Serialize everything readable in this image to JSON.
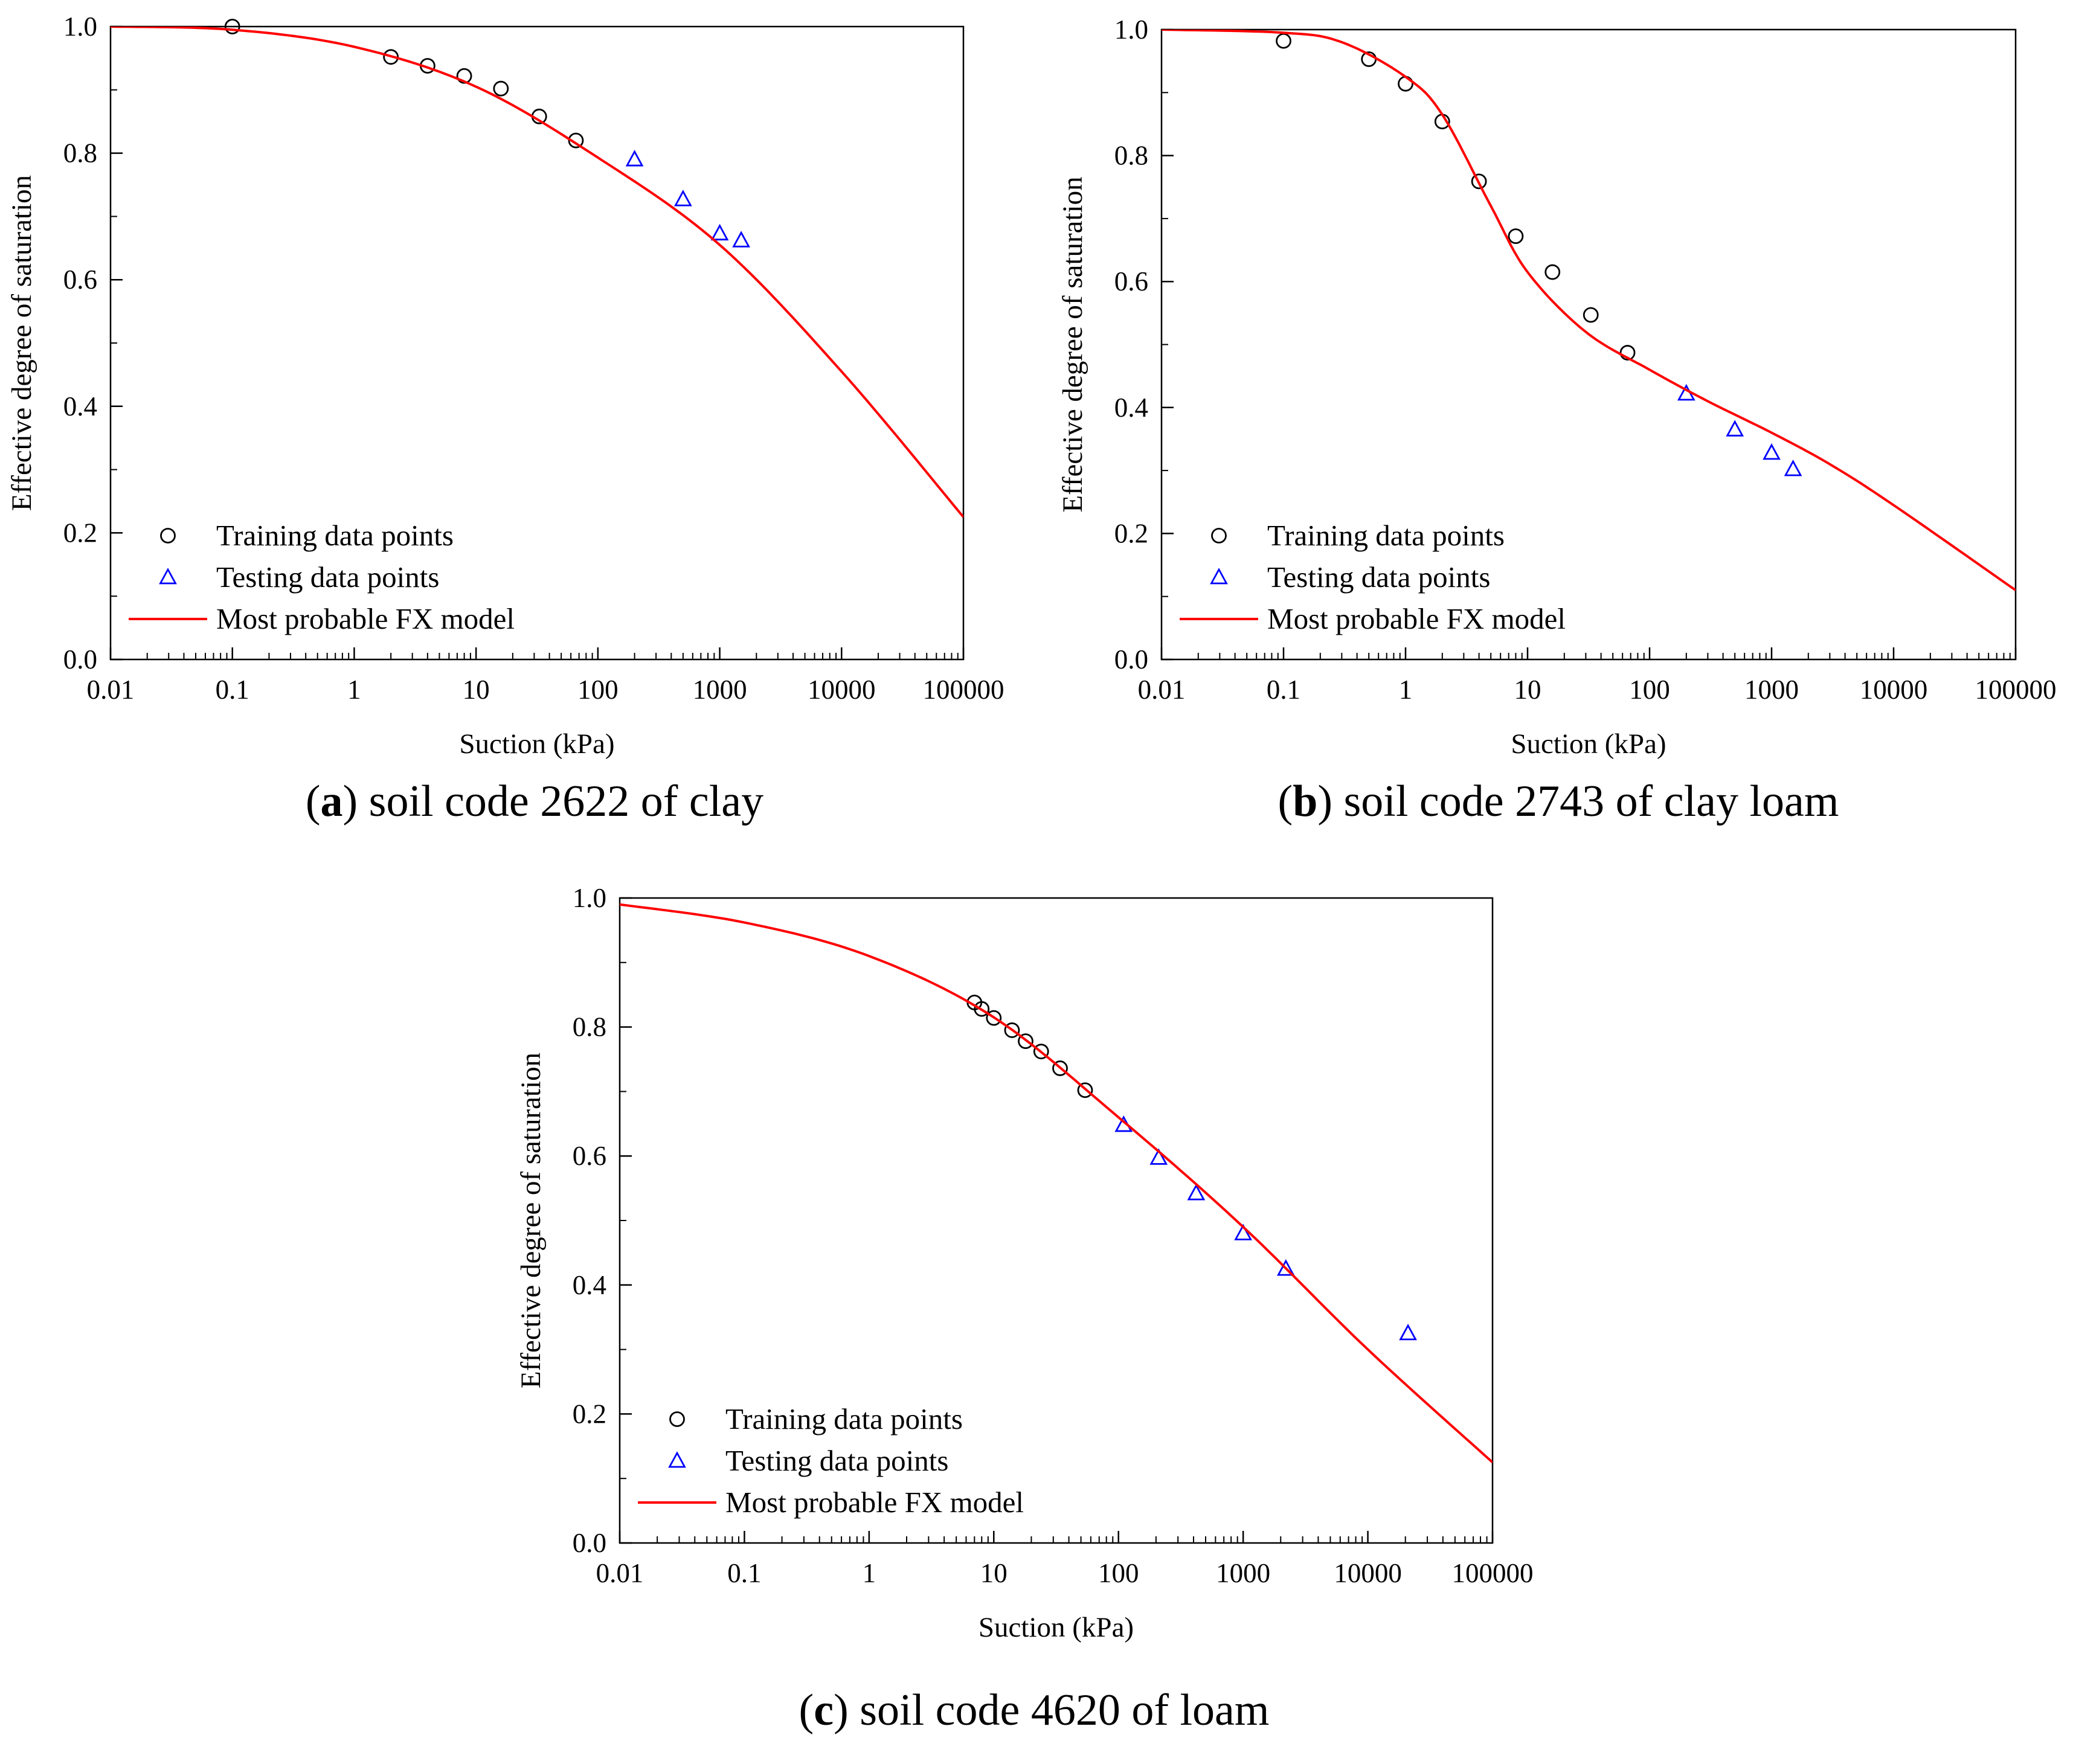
{
  "figure": {
    "panels": [
      {
        "letter": "a",
        "caption_text": " soil code 2622 of clay"
      },
      {
        "letter": "b",
        "caption_text": " soil code 2743 of clay loam"
      },
      {
        "letter": "c",
        "caption_text": " soil code 4620 of loam"
      }
    ]
  },
  "colors": {
    "training": "#000000",
    "testing": "#0000ff",
    "model": "#ff0000",
    "axis": "#000000"
  },
  "chart_data": [
    {
      "id": "a",
      "type": "scatter",
      "xscale": "log",
      "xlim": [
        0.01,
        100000
      ],
      "ylim": [
        0.0,
        1.0
      ],
      "xlabel": "Suction (kPa)",
      "ylabel": "Effective degree of saturation",
      "xticks": [
        "0.01",
        "0.1",
        "1",
        "10",
        "100",
        "1000",
        "10000",
        "100000"
      ],
      "yticks": [
        "0.0",
        "0.2",
        "0.4",
        "0.6",
        "0.8",
        "1.0"
      ],
      "legend": [
        "Training data points",
        "Testing data points",
        "Most probable FX model"
      ],
      "series": [
        {
          "name": "Training data points",
          "marker": "circle",
          "x": [
            0.1,
            2,
            4,
            8,
            16,
            33,
            66
          ],
          "y": [
            1.0,
            0.952,
            0.938,
            0.922,
            0.902,
            0.858,
            0.82
          ]
        },
        {
          "name": "Testing data points",
          "marker": "triangle",
          "x": [
            200,
            500,
            1000,
            1500
          ],
          "y": [
            0.79,
            0.727,
            0.673,
            0.662
          ]
        },
        {
          "name": "Most probable FX model",
          "marker": "line",
          "x": [
            0.01,
            0.1,
            1,
            10,
            100,
            1000,
            10000,
            100000
          ],
          "y": [
            1.0,
            0.995,
            0.968,
            0.905,
            0.793,
            0.655,
            0.455,
            0.225
          ]
        }
      ]
    },
    {
      "id": "b",
      "type": "scatter",
      "xscale": "log",
      "xlim": [
        0.01,
        100000
      ],
      "ylim": [
        0.0,
        1.0
      ],
      "xlabel": "Suction (kPa)",
      "ylabel": "Effective degree of saturation",
      "xticks": [
        "0.01",
        "0.1",
        "1",
        "10",
        "100",
        "1000",
        "10000",
        "100000"
      ],
      "yticks": [
        "0.0",
        "0.2",
        "0.4",
        "0.6",
        "0.8",
        "1.0"
      ],
      "legend": [
        "Training data points",
        "Testing data points",
        "Most probable FX model"
      ],
      "series": [
        {
          "name": "Training data points",
          "marker": "circle",
          "x": [
            0.1,
            0.5,
            1,
            2,
            4,
            8,
            16,
            33,
            66
          ],
          "y": [
            0.982,
            0.953,
            0.914,
            0.854,
            0.759,
            0.672,
            0.615,
            0.547,
            0.487
          ]
        },
        {
          "name": "Testing data points",
          "marker": "triangle",
          "x": [
            200,
            500,
            1000,
            1500
          ],
          "y": [
            0.422,
            0.365,
            0.328,
            0.302
          ]
        },
        {
          "name": "Most probable FX model",
          "marker": "line",
          "x": [
            0.01,
            0.1,
            0.3,
            1,
            2,
            5,
            10,
            30,
            100,
            300,
            1000,
            3000,
            10000,
            100000
          ],
          "y": [
            1.0,
            0.995,
            0.98,
            0.925,
            0.865,
            0.72,
            0.615,
            0.52,
            0.46,
            0.41,
            0.36,
            0.31,
            0.245,
            0.11
          ]
        }
      ]
    },
    {
      "id": "c",
      "type": "scatter",
      "xscale": "log",
      "xlim": [
        0.01,
        100000
      ],
      "ylim": [
        0.0,
        1.0
      ],
      "xlabel": "Suction (kPa)",
      "ylabel": "Effective degree of saturation",
      "xticks": [
        "0.01",
        "0.1",
        "1",
        "10",
        "100",
        "1000",
        "10000",
        "100000"
      ],
      "yticks": [
        "0.0",
        "0.2",
        "0.4",
        "0.6",
        "0.8",
        "1.0"
      ],
      "legend": [
        "Training data points",
        "Testing data points",
        "Most probable FX model"
      ],
      "series": [
        {
          "name": "Training data points",
          "marker": "circle",
          "x": [
            7,
            8,
            10,
            14,
            18,
            24,
            34,
            54
          ],
          "y": [
            0.838,
            0.828,
            0.814,
            0.795,
            0.778,
            0.762,
            0.736,
            0.702
          ]
        },
        {
          "name": "Testing data points",
          "marker": "triangle",
          "x": [
            110,
            210,
            420,
            1000,
            2200,
            21000
          ],
          "y": [
            0.648,
            0.597,
            0.542,
            0.48,
            0.425,
            0.325
          ]
        },
        {
          "name": "Most probable FX model",
          "marker": "line",
          "x": [
            0.01,
            0.1,
            1,
            10,
            100,
            1000,
            10000,
            100000
          ],
          "y": [
            0.99,
            0.962,
            0.91,
            0.815,
            0.66,
            0.49,
            0.3,
            0.125
          ]
        }
      ]
    }
  ]
}
